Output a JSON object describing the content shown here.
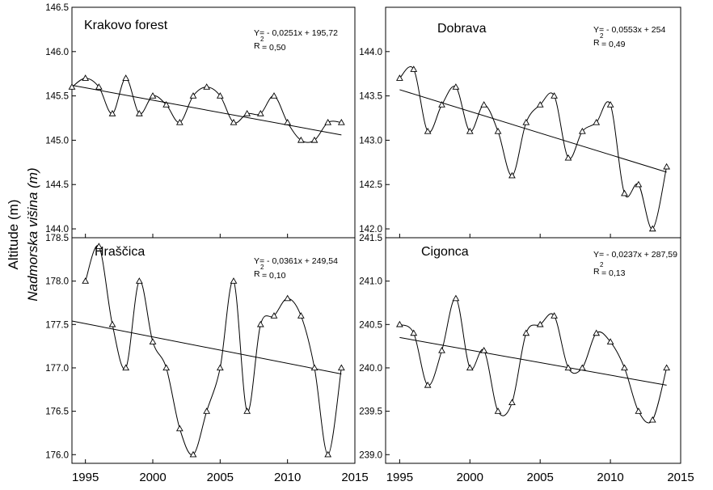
{
  "figure": {
    "ylabel": "Altitude (m)",
    "ylabel_alt": "Nadmorska višina (m)"
  },
  "chart_data": [
    {
      "type": "line",
      "title": "Krakovo forest",
      "equation": "Y= - 0,0251x + 195,72",
      "r2_prefix": "R",
      "r2_exp": "2",
      "r2_value": "= 0,50",
      "xlim": [
        1994,
        2015
      ],
      "ylim": [
        143.9,
        146.5
      ],
      "yticks": [
        144.0,
        144.5,
        145.0,
        145.5,
        146.0,
        146.5
      ],
      "ytick_labels": [
        "144.0",
        "144.5",
        "145.0",
        "145.5",
        "146.0",
        "146.5"
      ],
      "x": [
        1994,
        1995,
        1996,
        1997,
        1998,
        1999,
        2000,
        2001,
        2002,
        2003,
        2004,
        2005,
        2006,
        2007,
        2008,
        2009,
        2010,
        2011,
        2012,
        2013,
        2014
      ],
      "y": [
        145.6,
        145.7,
        145.6,
        145.3,
        145.7,
        145.3,
        145.5,
        145.4,
        145.2,
        145.5,
        145.6,
        145.5,
        145.2,
        145.3,
        145.3,
        145.5,
        145.2,
        145.0,
        145.0,
        145.2,
        145.2
      ],
      "trend": [
        [
          1994,
          145.62
        ],
        [
          2014,
          145.06
        ]
      ],
      "marker": "triangle",
      "grid": false
    },
    {
      "type": "line",
      "title": "Dobrava",
      "equation": "Y= - 0,0553x + 254",
      "r2_prefix": "R",
      "r2_exp": "2",
      "r2_value": "= 0,49",
      "xlim": [
        1994,
        2015
      ],
      "ylim": [
        141.9,
        144.5
      ],
      "yticks": [
        142.0,
        142.5,
        143.0,
        143.5,
        144.0
      ],
      "ytick_labels": [
        "142.0",
        "142.5",
        "143.0",
        "143.5",
        "144.0"
      ],
      "x": [
        1995,
        1996,
        1997,
        1998,
        1999,
        2000,
        2001,
        2002,
        2003,
        2004,
        2005,
        2006,
        2007,
        2008,
        2009,
        2010,
        2011,
        2012,
        2013,
        2014
      ],
      "y": [
        143.7,
        143.8,
        143.1,
        143.4,
        143.6,
        143.1,
        143.4,
        143.1,
        142.6,
        143.2,
        143.4,
        143.5,
        142.8,
        143.1,
        143.2,
        143.4,
        142.4,
        142.5,
        142.0,
        142.7
      ],
      "trend": [
        [
          1995,
          143.57
        ],
        [
          2014,
          142.64
        ]
      ],
      "marker": "triangle",
      "grid": false
    },
    {
      "type": "line",
      "title": "Hraščica",
      "equation": "Y= - 0,0361x + 249,54",
      "r2_prefix": "R",
      "r2_exp": "2",
      "r2_value": "= 0,10",
      "xlim": [
        1994,
        2015
      ],
      "ylim": [
        175.9,
        178.5
      ],
      "yticks": [
        176.0,
        176.5,
        177.0,
        177.5,
        178.0,
        178.5
      ],
      "ytick_labels": [
        "176.0",
        "176.5",
        "177.0",
        "177.5",
        "178.0",
        "178.5"
      ],
      "x": [
        1995,
        1996,
        1997,
        1998,
        1999,
        2000,
        2001,
        2002,
        2003,
        2004,
        2005,
        2006,
        2007,
        2008,
        2009,
        2010,
        2011,
        2012,
        2013,
        2014
      ],
      "y": [
        178.0,
        178.4,
        177.5,
        177.0,
        178.0,
        177.3,
        177.0,
        176.3,
        176.0,
        176.5,
        177.0,
        178.0,
        176.5,
        177.5,
        177.6,
        177.8,
        177.6,
        177.0,
        176.0,
        177.0
      ],
      "trend": [
        [
          1994,
          177.54
        ],
        [
          2014,
          176.93
        ]
      ],
      "marker": "triangle",
      "grid": false
    },
    {
      "type": "line",
      "title": "Cigonca",
      "equation": "Y= - 0,0237x + 287,59",
      "r2_prefix": "R",
      "r2_exp": "2",
      "r2_value": "= 0,13",
      "xlim": [
        1994,
        2015
      ],
      "ylim": [
        238.9,
        241.5
      ],
      "yticks": [
        239.0,
        239.5,
        240.0,
        240.5,
        241.0,
        241.5
      ],
      "ytick_labels": [
        "239.0",
        "239.5",
        "240.0",
        "240.5",
        "241.0",
        "241.5"
      ],
      "x": [
        1995,
        1996,
        1997,
        1998,
        1999,
        2000,
        2001,
        2002,
        2003,
        2004,
        2005,
        2006,
        2007,
        2008,
        2009,
        2010,
        2011,
        2012,
        2013,
        2014
      ],
      "y": [
        240.5,
        240.4,
        239.8,
        240.2,
        240.8,
        240.0,
        240.2,
        239.5,
        239.6,
        240.4,
        240.5,
        240.6,
        240.0,
        240.0,
        240.4,
        240.3,
        240.0,
        239.5,
        239.4,
        240.0
      ],
      "trend": [
        [
          1995,
          240.35
        ],
        [
          2014,
          239.8
        ]
      ],
      "marker": "triangle",
      "grid": false
    }
  ],
  "xaxis": {
    "ticks": [
      1995,
      2000,
      2005,
      2010,
      2015
    ],
    "tick_labels": [
      "1995",
      "2000",
      "2005",
      "2010",
      "2015"
    ]
  }
}
